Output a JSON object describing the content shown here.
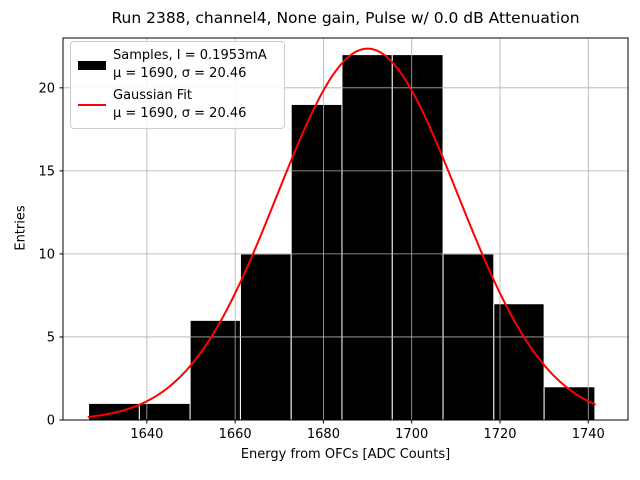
{
  "chart_data": {
    "type": "bar",
    "subtype": "histogram-with-gaussian-fit",
    "title": "Run 2388, channel4, None gain, Pulse w/ 0.0 dB Attenuation",
    "xlabel": "Energy from OFCs [ADC Counts]",
    "ylabel": "Entries",
    "xlim": [
      1621,
      1749
    ],
    "ylim": [
      0,
      23.0
    ],
    "xticks": [
      1640,
      1660,
      1680,
      1700,
      1720,
      1740
    ],
    "yticks": [
      0,
      5,
      10,
      15,
      20
    ],
    "grid": true,
    "grid_color": "#b0b0b0",
    "background_color": "#ffffff",
    "histogram": {
      "bin_edges": [
        1626.8,
        1638.3,
        1649.8,
        1661.2,
        1672.7,
        1684.2,
        1695.6,
        1707.1,
        1718.6,
        1730.0,
        1741.5
      ],
      "counts": [
        1,
        1,
        6,
        10,
        19,
        22,
        22,
        10,
        7,
        2
      ],
      "total_entries": 100,
      "color": "#000000",
      "edge_color": "#ffffff"
    },
    "fit": {
      "type": "gaussian",
      "mu": 1690,
      "sigma": 20.46,
      "amplitude": 22.36,
      "x_range": [
        1626.8,
        1741.5
      ],
      "color": "#ff0000"
    },
    "legend": {
      "position": "upper left",
      "entries": [
        {
          "swatch": "black-bar",
          "lines": [
            "Samples, I = 0.1953mA",
            "μ = 1690, σ = 20.46"
          ]
        },
        {
          "swatch": "red-line",
          "lines": [
            "Gaussian Fit",
            "μ = 1690, σ = 20.46"
          ]
        }
      ]
    }
  }
}
